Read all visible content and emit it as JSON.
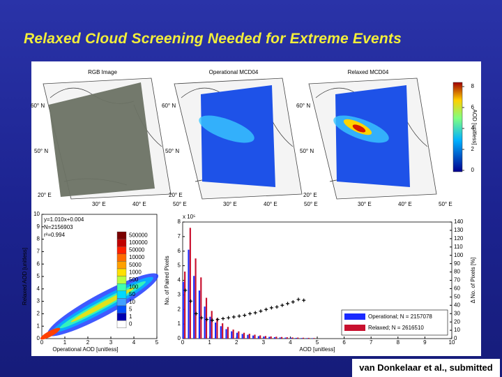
{
  "slide": {
    "title": "Relaxed Cloud Screening Needed for Extreme Events",
    "credit": "van Donkelaar et al., submitted"
  },
  "maps": {
    "panels": [
      {
        "title": "RGB Image",
        "lat_labels": [
          "60° N",
          "50° N"
        ],
        "lon_labels": [
          "20° E",
          "30° E",
          "40° E",
          "50° E"
        ]
      },
      {
        "title": "Operational MCD04",
        "lat_labels": [
          "60° N",
          "50° N"
        ],
        "lon_labels": [
          "20° E",
          "30° E",
          "40° E",
          "50° E"
        ]
      },
      {
        "title": "Relaxed MCD04",
        "lat_labels": [
          "60° N",
          "50° N"
        ],
        "lon_labels": [
          "20° E",
          "30° E",
          "40° E",
          "50° E"
        ]
      }
    ],
    "colorbar": {
      "ticks": [
        0,
        2,
        4,
        6,
        8
      ],
      "label": "AOD [unitless]"
    }
  },
  "chart_data": [
    {
      "type": "density",
      "xlabel": "Operational AOD [unitless]",
      "ylabel": "Relaxed AOD [unitless]",
      "annotations": [
        "y=1.010x+0.004",
        "N=2156903",
        "r²=0.994"
      ],
      "xlim": [
        0,
        5
      ],
      "xticks": [
        0,
        1,
        2,
        3,
        4,
        5
      ],
      "ylim": [
        0,
        10
      ],
      "yticks": [
        0,
        1,
        2,
        3,
        4,
        5,
        6,
        7,
        8,
        9,
        10
      ],
      "legend": {
        "labels": [
          500000,
          100000,
          50000,
          10000,
          5000,
          1000,
          500,
          100,
          50,
          10,
          5,
          1,
          0
        ],
        "colors": [
          "#7a0000",
          "#c00000",
          "#ff2000",
          "#ff6a00",
          "#ffa000",
          "#ffe000",
          "#b8ff40",
          "#40ffb0",
          "#00d8ff",
          "#40a0ff",
          "#0050ff",
          "#0000b0",
          "#ffffff"
        ]
      }
    },
    {
      "type": "bar",
      "xlabel": "AOD [unitless]",
      "ylabel": "No. of Paired Pixels",
      "y2label": "Δ No. of Pixels [%]",
      "y_exponent": "x 10⁵",
      "x": [
        0,
        0.2,
        0.4,
        0.6,
        0.8,
        1.0,
        1.2,
        1.4,
        1.6,
        1.8,
        2.0,
        2.2,
        2.4,
        2.6,
        2.8,
        3.0,
        3.2,
        3.4,
        3.6,
        3.8,
        4.0,
        4.2,
        4.4,
        4.6,
        4.8
      ],
      "series": [
        {
          "name": "Operational; N = 2157078",
          "color": "#1a2aff",
          "values": [
            3.9,
            6.1,
            4.3,
            3.3,
            2.2,
            1.5,
            1.1,
            0.85,
            0.65,
            0.5,
            0.4,
            0.32,
            0.26,
            0.21,
            0.17,
            0.14,
            0.12,
            0.1,
            0.08,
            0.07,
            0.06,
            0.05,
            0.04,
            0.035,
            0.03
          ]
        },
        {
          "name": "Relaxed; N = 2616510",
          "color": "#c8102e",
          "values": [
            4.6,
            7.6,
            5.5,
            4.2,
            2.8,
            1.9,
            1.4,
            1.05,
            0.8,
            0.62,
            0.5,
            0.4,
            0.33,
            0.27,
            0.22,
            0.18,
            0.15,
            0.13,
            0.11,
            0.09,
            0.08,
            0.07,
            0.06,
            0.05,
            0.04
          ]
        }
      ],
      "diff": {
        "color": "#000000",
        "axis": "y2",
        "x": [
          0.1,
          0.3,
          0.5,
          0.7,
          0.9,
          1.1,
          1.3,
          1.5,
          1.7,
          1.9,
          2.1,
          2.3,
          2.5,
          2.7,
          2.9,
          3.1,
          3.3,
          3.5,
          3.7,
          3.9,
          4.1,
          4.3,
          4.5
        ],
        "values": [
          58,
          45,
          30,
          25,
          23,
          22,
          23,
          24,
          25,
          26,
          27,
          28,
          30,
          31,
          33,
          35,
          37,
          38,
          40,
          42,
          44,
          47,
          46
        ]
      },
      "xlim": [
        0,
        10
      ],
      "xticks": [
        0,
        1,
        2,
        3,
        4,
        5,
        6,
        7,
        8,
        9,
        10
      ],
      "ylim": [
        0,
        8
      ],
      "yticks": [
        0,
        1,
        2,
        3,
        4,
        5,
        6,
        7,
        8
      ],
      "y2lim": [
        0,
        140
      ],
      "y2ticks": [
        0,
        10,
        20,
        30,
        40,
        50,
        60,
        70,
        80,
        90,
        100,
        110,
        120,
        130,
        140
      ]
    }
  ]
}
